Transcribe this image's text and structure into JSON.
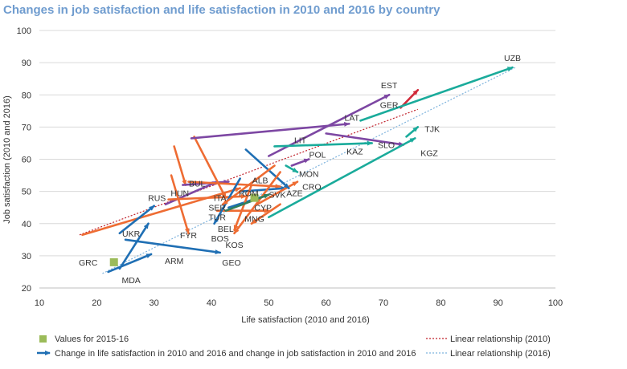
{
  "chart_data": {
    "type": "scatter",
    "title": "Changes in job satisfaction and life satisfaction in 2010 and 2016 by country",
    "xlabel": "Life satisfaction (2010 and 2016)",
    "ylabel": "Job satisfaction (2010 and 2016)",
    "xlim": [
      10,
      100
    ],
    "ylim": [
      20,
      100
    ],
    "xticks": [
      "10",
      "20",
      "30",
      "40",
      "50",
      "60",
      "70",
      "80",
      "90",
      "100"
    ],
    "yticks": [
      "20",
      "30",
      "40",
      "50",
      "60",
      "70",
      "80",
      "90",
      "100"
    ],
    "grid": "horizontal",
    "colors": {
      "blue": "#1f6fb4",
      "orange": "#ee6c33",
      "purple": "#7d47a3",
      "teal": "#1aab9b",
      "red": "#d12a3a",
      "darkgreen": "#2f7f5e",
      "green_square": "#9bbb59",
      "linear_2010": "#c0202a",
      "linear_2016": "#7eb3dd"
    },
    "arrows": [
      {
        "from": [
          17.5,
          36.5
        ],
        "to": [
          45,
          51
        ],
        "color": "orange"
      },
      {
        "from": [
          24,
          37
        ],
        "to": [
          30,
          45.5
        ],
        "color": "blue"
      },
      {
        "from": [
          25,
          35
        ],
        "to": [
          41.5,
          31
        ],
        "color": "blue"
      },
      {
        "from": [
          22,
          25
        ],
        "to": [
          29.5,
          30.5
        ],
        "color": "blue"
      },
      {
        "from": [
          24,
          26
        ],
        "to": [
          29,
          40
        ],
        "color": "blue"
      },
      {
        "from": [
          32,
          46
        ],
        "to": [
          41,
          53
        ],
        "color": "purple"
      },
      {
        "from": [
          33,
          55
        ],
        "to": [
          36,
          37
        ],
        "color": "orange"
      },
      {
        "from": [
          33.5,
          64
        ],
        "to": [
          35.5,
          52
        ],
        "color": "orange"
      },
      {
        "from": [
          32.5,
          47.5
        ],
        "to": [
          46,
          48.5
        ],
        "color": "orange"
      },
      {
        "from": [
          35,
          52
        ],
        "to": [
          43,
          53
        ],
        "color": "purple"
      },
      {
        "from": [
          36,
          53
        ],
        "to": [
          52,
          51.5
        ],
        "color": "orange"
      },
      {
        "from": [
          37,
          67
        ],
        "to": [
          42.5,
          48
        ],
        "color": "orange"
      },
      {
        "from": [
          41,
          44
        ],
        "to": [
          50,
          44
        ],
        "color": "orange"
      },
      {
        "from": [
          45,
          50
        ],
        "to": [
          53,
          51
        ],
        "color": "blue"
      },
      {
        "from": [
          48,
          46
        ],
        "to": [
          55,
          53
        ],
        "color": "orange"
      },
      {
        "from": [
          43,
          45
        ],
        "to": [
          50,
          49
        ],
        "color": "blue"
      },
      {
        "from": [
          46,
          63
        ],
        "to": [
          53.5,
          51
        ],
        "color": "blue"
      },
      {
        "from": [
          45,
          54
        ],
        "to": [
          40.5,
          40
        ],
        "color": "blue"
      },
      {
        "from": [
          51,
          58
        ],
        "to": [
          42,
          46
        ],
        "color": "orange"
      },
      {
        "from": [
          47,
          52
        ],
        "to": [
          44,
          38
        ],
        "color": "orange"
      },
      {
        "from": [
          52,
          56
        ],
        "to": [
          44,
          37
        ],
        "color": "orange"
      },
      {
        "from": [
          42.5,
          44
        ],
        "to": [
          50,
          49
        ],
        "color": "darkgreen"
      },
      {
        "from": [
          52,
          46
        ],
        "to": [
          47,
          40
        ],
        "color": "orange"
      },
      {
        "from": [
          36.5,
          66.5
        ],
        "to": [
          64,
          71
        ],
        "color": "purple"
      },
      {
        "from": [
          50,
          61
        ],
        "to": [
          71,
          80
        ],
        "color": "purple"
      },
      {
        "from": [
          51,
          64
        ],
        "to": [
          68,
          65
        ],
        "color": "teal"
      },
      {
        "from": [
          54,
          58
        ],
        "to": [
          57,
          60
        ],
        "color": "purple"
      },
      {
        "from": [
          60,
          68
        ],
        "to": [
          73.5,
          64.5
        ],
        "color": "purple"
      },
      {
        "from": [
          53,
          58
        ],
        "to": [
          55,
          56
        ],
        "color": "teal"
      },
      {
        "from": [
          73,
          76
        ],
        "to": [
          76,
          81.5
        ],
        "color": "red"
      },
      {
        "from": [
          66,
          72
        ],
        "to": [
          92.5,
          88.5
        ],
        "color": "teal"
      },
      {
        "from": [
          50,
          42
        ],
        "to": [
          75.5,
          66.5
        ],
        "color": "teal"
      },
      {
        "from": [
          74,
          67
        ],
        "to": [
          76,
          70
        ],
        "color": "teal"
      }
    ],
    "squares": [
      {
        "x": 23.0,
        "y": 28.0
      },
      {
        "x": 47.5,
        "y": 48.0
      }
    ],
    "labels": [
      {
        "text": "UZB",
        "x": 92.5,
        "y": 91.5
      },
      {
        "text": "EST",
        "x": 71,
        "y": 83
      },
      {
        "text": "GER",
        "x": 71,
        "y": 77
      },
      {
        "text": "LAT",
        "x": 64.5,
        "y": 73
      },
      {
        "text": "TJK",
        "x": 78.5,
        "y": 69.5
      },
      {
        "text": "LIT",
        "x": 55.5,
        "y": 66
      },
      {
        "text": "SLO",
        "x": 70.5,
        "y": 64.5
      },
      {
        "text": "KAZ",
        "x": 65,
        "y": 62.5
      },
      {
        "text": "KGZ",
        "x": 78,
        "y": 62
      },
      {
        "text": "POL",
        "x": 58.5,
        "y": 61.5
      },
      {
        "text": "MON",
        "x": 57,
        "y": 55.5
      },
      {
        "text": "BUL",
        "x": 37.5,
        "y": 52.5
      },
      {
        "text": "ALB",
        "x": 48.5,
        "y": 53.5
      },
      {
        "text": "HUN",
        "x": 34.5,
        "y": 49.5
      },
      {
        "text": "ROM",
        "x": 46.5,
        "y": 49.5
      },
      {
        "text": "SVK",
        "x": 51.5,
        "y": 49
      },
      {
        "text": "CRO",
        "x": 57.5,
        "y": 51.5
      },
      {
        "text": "RUS",
        "x": 30.5,
        "y": 48
      },
      {
        "text": "ITA",
        "x": 41.5,
        "y": 48
      },
      {
        "text": "AZE",
        "x": 54.5,
        "y": 49.5
      },
      {
        "text": "SER",
        "x": 41,
        "y": 45
      },
      {
        "text": "CYP",
        "x": 49,
        "y": 45
      },
      {
        "text": "TUR",
        "x": 41,
        "y": 42
      },
      {
        "text": "MNG",
        "x": 47.5,
        "y": 41.5
      },
      {
        "text": "BEL",
        "x": 42.5,
        "y": 38.5
      },
      {
        "text": "FYR",
        "x": 36,
        "y": 36.5
      },
      {
        "text": "BOS",
        "x": 41.5,
        "y": 35.5
      },
      {
        "text": "UKR",
        "x": 26,
        "y": 37
      },
      {
        "text": "KOS",
        "x": 44,
        "y": 33.5
      },
      {
        "text": "GRC",
        "x": 18.5,
        "y": 28
      },
      {
        "text": "ARM",
        "x": 33.5,
        "y": 28.5
      },
      {
        "text": "GEO",
        "x": 43.5,
        "y": 28
      },
      {
        "text": "MDA",
        "x": 26,
        "y": 22.5
      }
    ],
    "trendlines": [
      {
        "name": "Linear relationship (2010)",
        "color": "linear_2010",
        "from": [
          17,
          36.5
        ],
        "to": [
          76,
          75.5
        ]
      },
      {
        "name": "Linear relationship (2016)",
        "color": "linear_2016",
        "from": [
          21,
          24.5
        ],
        "to": [
          93,
          88.5
        ]
      }
    ],
    "legend": {
      "placement": "bottom",
      "square_label": "Values for 2015-16",
      "arrow_label": "Change in life satisfaction in 2010 and 2016 and change in job satisfaction in 2010 and 2016",
      "line_2010_label": "Linear relationship (2010)",
      "line_2016_label": "Linear relationship (2016)"
    }
  }
}
